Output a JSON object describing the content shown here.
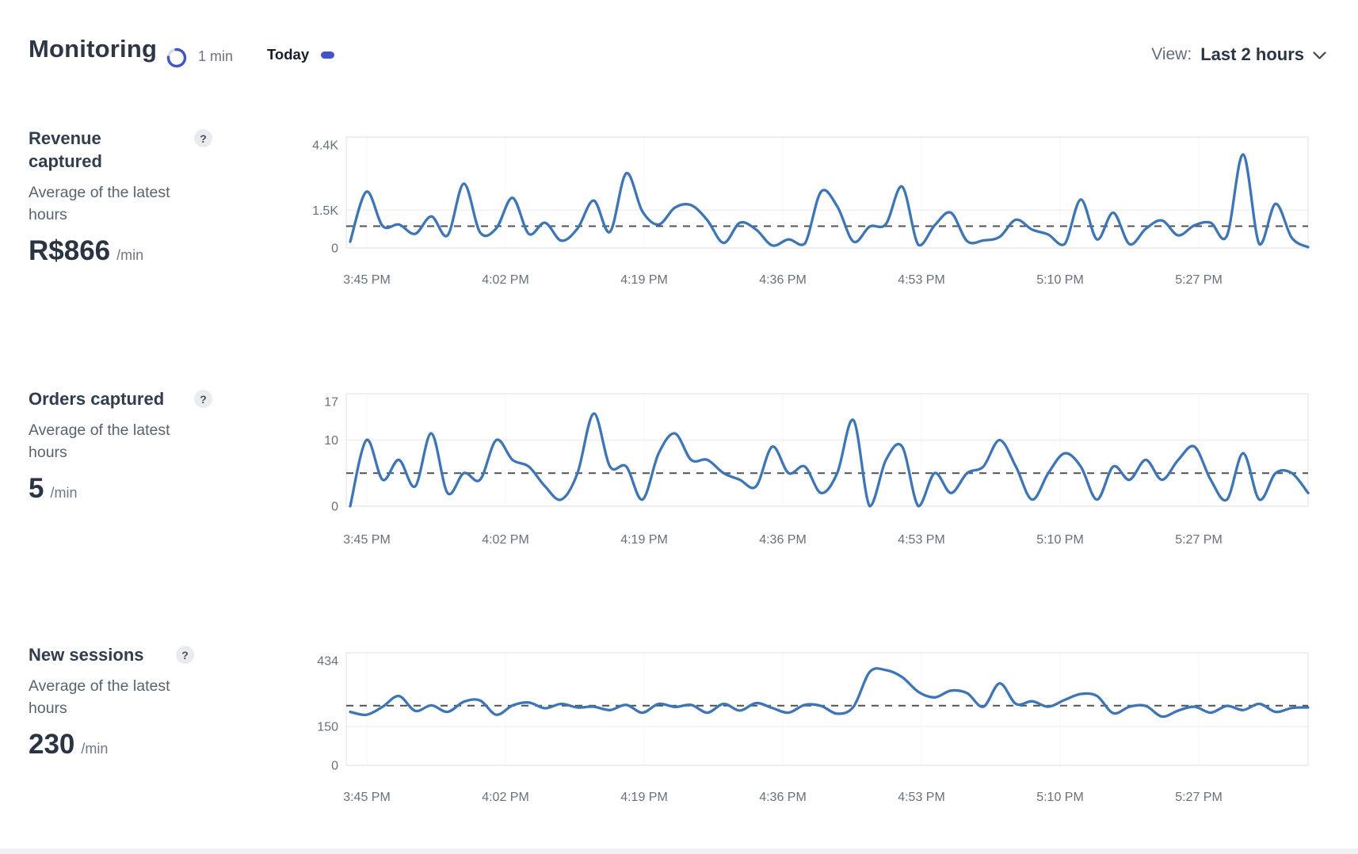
{
  "header": {
    "title": "Monitoring",
    "refresh_interval": "1 min",
    "legend_today": "Today",
    "view_label": "View:",
    "view_value": "Last 2 hours"
  },
  "ui": {
    "help_glyph": "?"
  },
  "metrics": [
    {
      "title": "Revenue captured",
      "description": "Average of the latest hours",
      "value": "R$866",
      "unit": "/min"
    },
    {
      "title": "Orders captured",
      "description": "Average of the latest hours",
      "value": "5",
      "unit": "/min"
    },
    {
      "title": "New sessions",
      "description": "Average of the latest hours",
      "value": "230",
      "unit": "/min"
    }
  ],
  "colors": {
    "accent": "#4355c4",
    "series_line": "#3e75b5",
    "average_line": "#4e5257",
    "gridline": "#ededf0",
    "border": "#e4e7eb",
    "tick_text": "#68707c"
  },
  "chart_data": [
    {
      "type": "line",
      "name": "Revenue captured",
      "unit": "R$ per minute",
      "x_start": "3:43 PM",
      "x_step_minutes": 2,
      "x_tick_labels": [
        "3:45 PM",
        "4:02 PM",
        "4:19 PM",
        "4:36 PM",
        "4:53 PM",
        "5:10 PM",
        "5:27 PM"
      ],
      "ylim": [
        0,
        4400
      ],
      "y_ticks": [
        {
          "value": 0,
          "label": "0"
        },
        {
          "value": 1500,
          "label": "1.5K"
        },
        {
          "value": 4400,
          "label": "4.4K"
        }
      ],
      "average": 866,
      "grid": true,
      "legend_position": "none",
      "values": [
        250,
        2230,
        870,
        930,
        560,
        1250,
        500,
        2550,
        620,
        780,
        1990,
        560,
        1000,
        290,
        770,
        1880,
        640,
        2960,
        1450,
        930,
        1600,
        1700,
        1100,
        200,
        1000,
        730,
        100,
        340,
        170,
        2230,
        1650,
        250,
        850,
        950,
        2430,
        120,
        900,
        1400,
        270,
        300,
        440,
        1120,
        730,
        530,
        150,
        1920,
        340,
        1400,
        150,
        760,
        1090,
        500,
        900,
        1000,
        480,
        3710,
        150,
        1750,
        400,
        30
      ]
    },
    {
      "type": "line",
      "name": "Orders captured",
      "unit": "orders per minute",
      "x_start": "3:43 PM",
      "x_step_minutes": 2,
      "x_tick_labels": [
        "3:45 PM",
        "4:02 PM",
        "4:19 PM",
        "4:36 PM",
        "4:53 PM",
        "5:10 PM",
        "5:27 PM"
      ],
      "ylim": [
        0,
        17
      ],
      "y_ticks": [
        {
          "value": 0,
          "label": "0"
        },
        {
          "value": 10,
          "label": "10"
        },
        {
          "value": 17,
          "label": "17"
        }
      ],
      "average": 5,
      "grid": true,
      "legend_position": "none",
      "values": [
        0,
        10,
        4,
        7,
        3,
        11,
        2,
        5,
        4,
        10,
        7,
        6,
        3,
        1,
        5,
        14,
        6,
        6,
        1,
        8,
        11,
        7,
        7,
        5,
        4,
        3,
        9,
        5,
        6,
        2,
        5,
        13,
        0,
        7,
        9,
        0,
        5,
        2,
        5,
        6,
        10,
        6,
        1,
        5,
        8,
        6,
        1,
        6,
        4,
        7,
        4,
        7,
        9,
        4,
        1,
        8,
        1,
        5,
        5,
        2
      ]
    },
    {
      "type": "line",
      "name": "New sessions",
      "unit": "sessions per minute",
      "x_start": "3:43 PM",
      "x_step_minutes": 2,
      "x_tick_labels": [
        "3:45 PM",
        "4:02 PM",
        "4:19 PM",
        "4:36 PM",
        "4:53 PM",
        "5:10 PM",
        "5:27 PM"
      ],
      "ylim": [
        0,
        434
      ],
      "y_ticks": [
        {
          "value": 0,
          "label": "0"
        },
        {
          "value": 150,
          "label": "150"
        },
        {
          "value": 434,
          "label": "434"
        }
      ],
      "average": 230,
      "grid": true,
      "legend_position": "none",
      "values": [
        206,
        195,
        226,
        267,
        210,
        231,
        206,
        245,
        250,
        195,
        231,
        242,
        220,
        237,
        223,
        226,
        213,
        233,
        203,
        237,
        225,
        233,
        203,
        237,
        211,
        240,
        221,
        203,
        233,
        229,
        199,
        226,
        360,
        367,
        340,
        283,
        262,
        288,
        278,
        226,
        316,
        237,
        247,
        226,
        252,
        275,
        267,
        201,
        226,
        229,
        188,
        211,
        226,
        203,
        229,
        213,
        237,
        206,
        221,
        223
      ]
    }
  ]
}
